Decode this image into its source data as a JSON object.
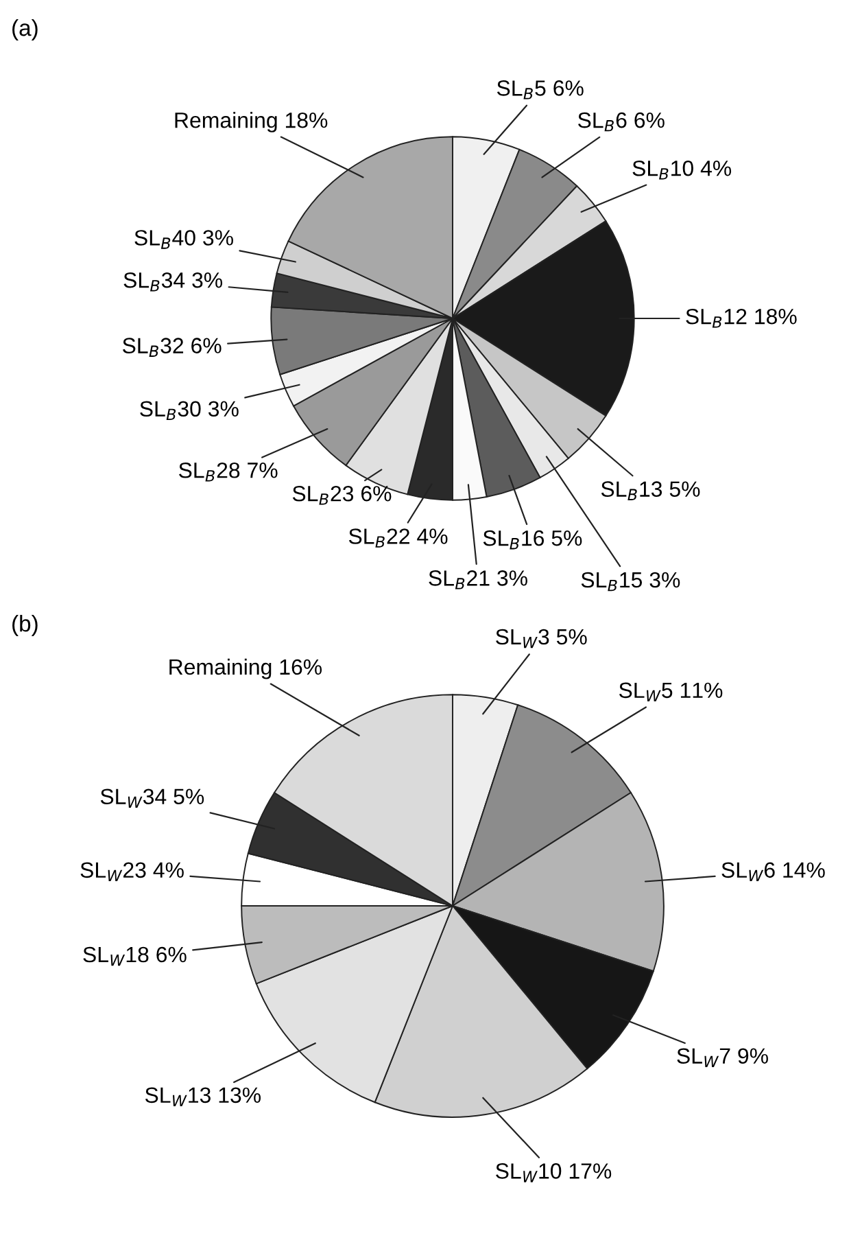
{
  "chart_data": [
    {
      "type": "pie",
      "title": "(a)",
      "categories": [
        "SL$_{B}$5",
        "SL$_{B}$6",
        "SL$_{B}$10",
        "SL$_{B}$12",
        "SL$_{B}$13",
        "SL$_{B}$15",
        "SL$_{B}$16",
        "SL$_{B}$21",
        "SL$_{B}$22",
        "SL$_{B}$23",
        "SL$_{B}$28",
        "SL$_{B}$30",
        "SL$_{B}$32",
        "SL$_{B}$34",
        "SL$_{B}$40",
        "Remaining"
      ],
      "values": [
        6,
        6,
        4,
        18,
        5,
        3,
        5,
        3,
        4,
        6,
        7,
        3,
        6,
        3,
        3,
        18
      ],
      "value_labels": [
        "6%",
        "6%",
        "4%",
        "18%",
        "5%",
        "3%",
        "5%",
        "3%",
        "4%",
        "6%",
        "7%",
        "3%",
        "6%",
        "3%",
        "3%",
        "18%"
      ],
      "colors": [
        "#f0f0f0",
        "#8a8a8a",
        "#d8d8d8",
        "#1a1a1a",
        "#c6c6c6",
        "#e8e8e8",
        "#5c5c5c",
        "#fafafa",
        "#2a2a2a",
        "#e0e0e0",
        "#9a9a9a",
        "#f2f2f2",
        "#7a7a7a",
        "#3a3a3a",
        "#cfcfcf",
        "#a8a8a8"
      ],
      "legend": false
    },
    {
      "type": "pie",
      "title": "(b)",
      "categories": [
        "SL$_{W}$3",
        "SL$_{W}$5",
        "SL$_{W}$6",
        "SL$_{W}$7",
        "SL$_{W}$10",
        "SL$_{W}$13",
        "SL$_{W}$18",
        "SL$_{W}$23",
        "SL$_{W}$34",
        "Remaining"
      ],
      "values": [
        5,
        11,
        14,
        9,
        17,
        13,
        6,
        4,
        5,
        16
      ],
      "value_labels": [
        "5%",
        "11%",
        "14%",
        "9%",
        "17%",
        "13%",
        "6%",
        "4%",
        "5%",
        "16%"
      ],
      "colors": [
        "#eeeeee",
        "#8c8c8c",
        "#b4b4b4",
        "#161616",
        "#d0d0d0",
        "#e2e2e2",
        "#bcbcbc",
        "#ffffff",
        "#303030",
        "#dadada"
      ],
      "legend": false
    }
  ]
}
